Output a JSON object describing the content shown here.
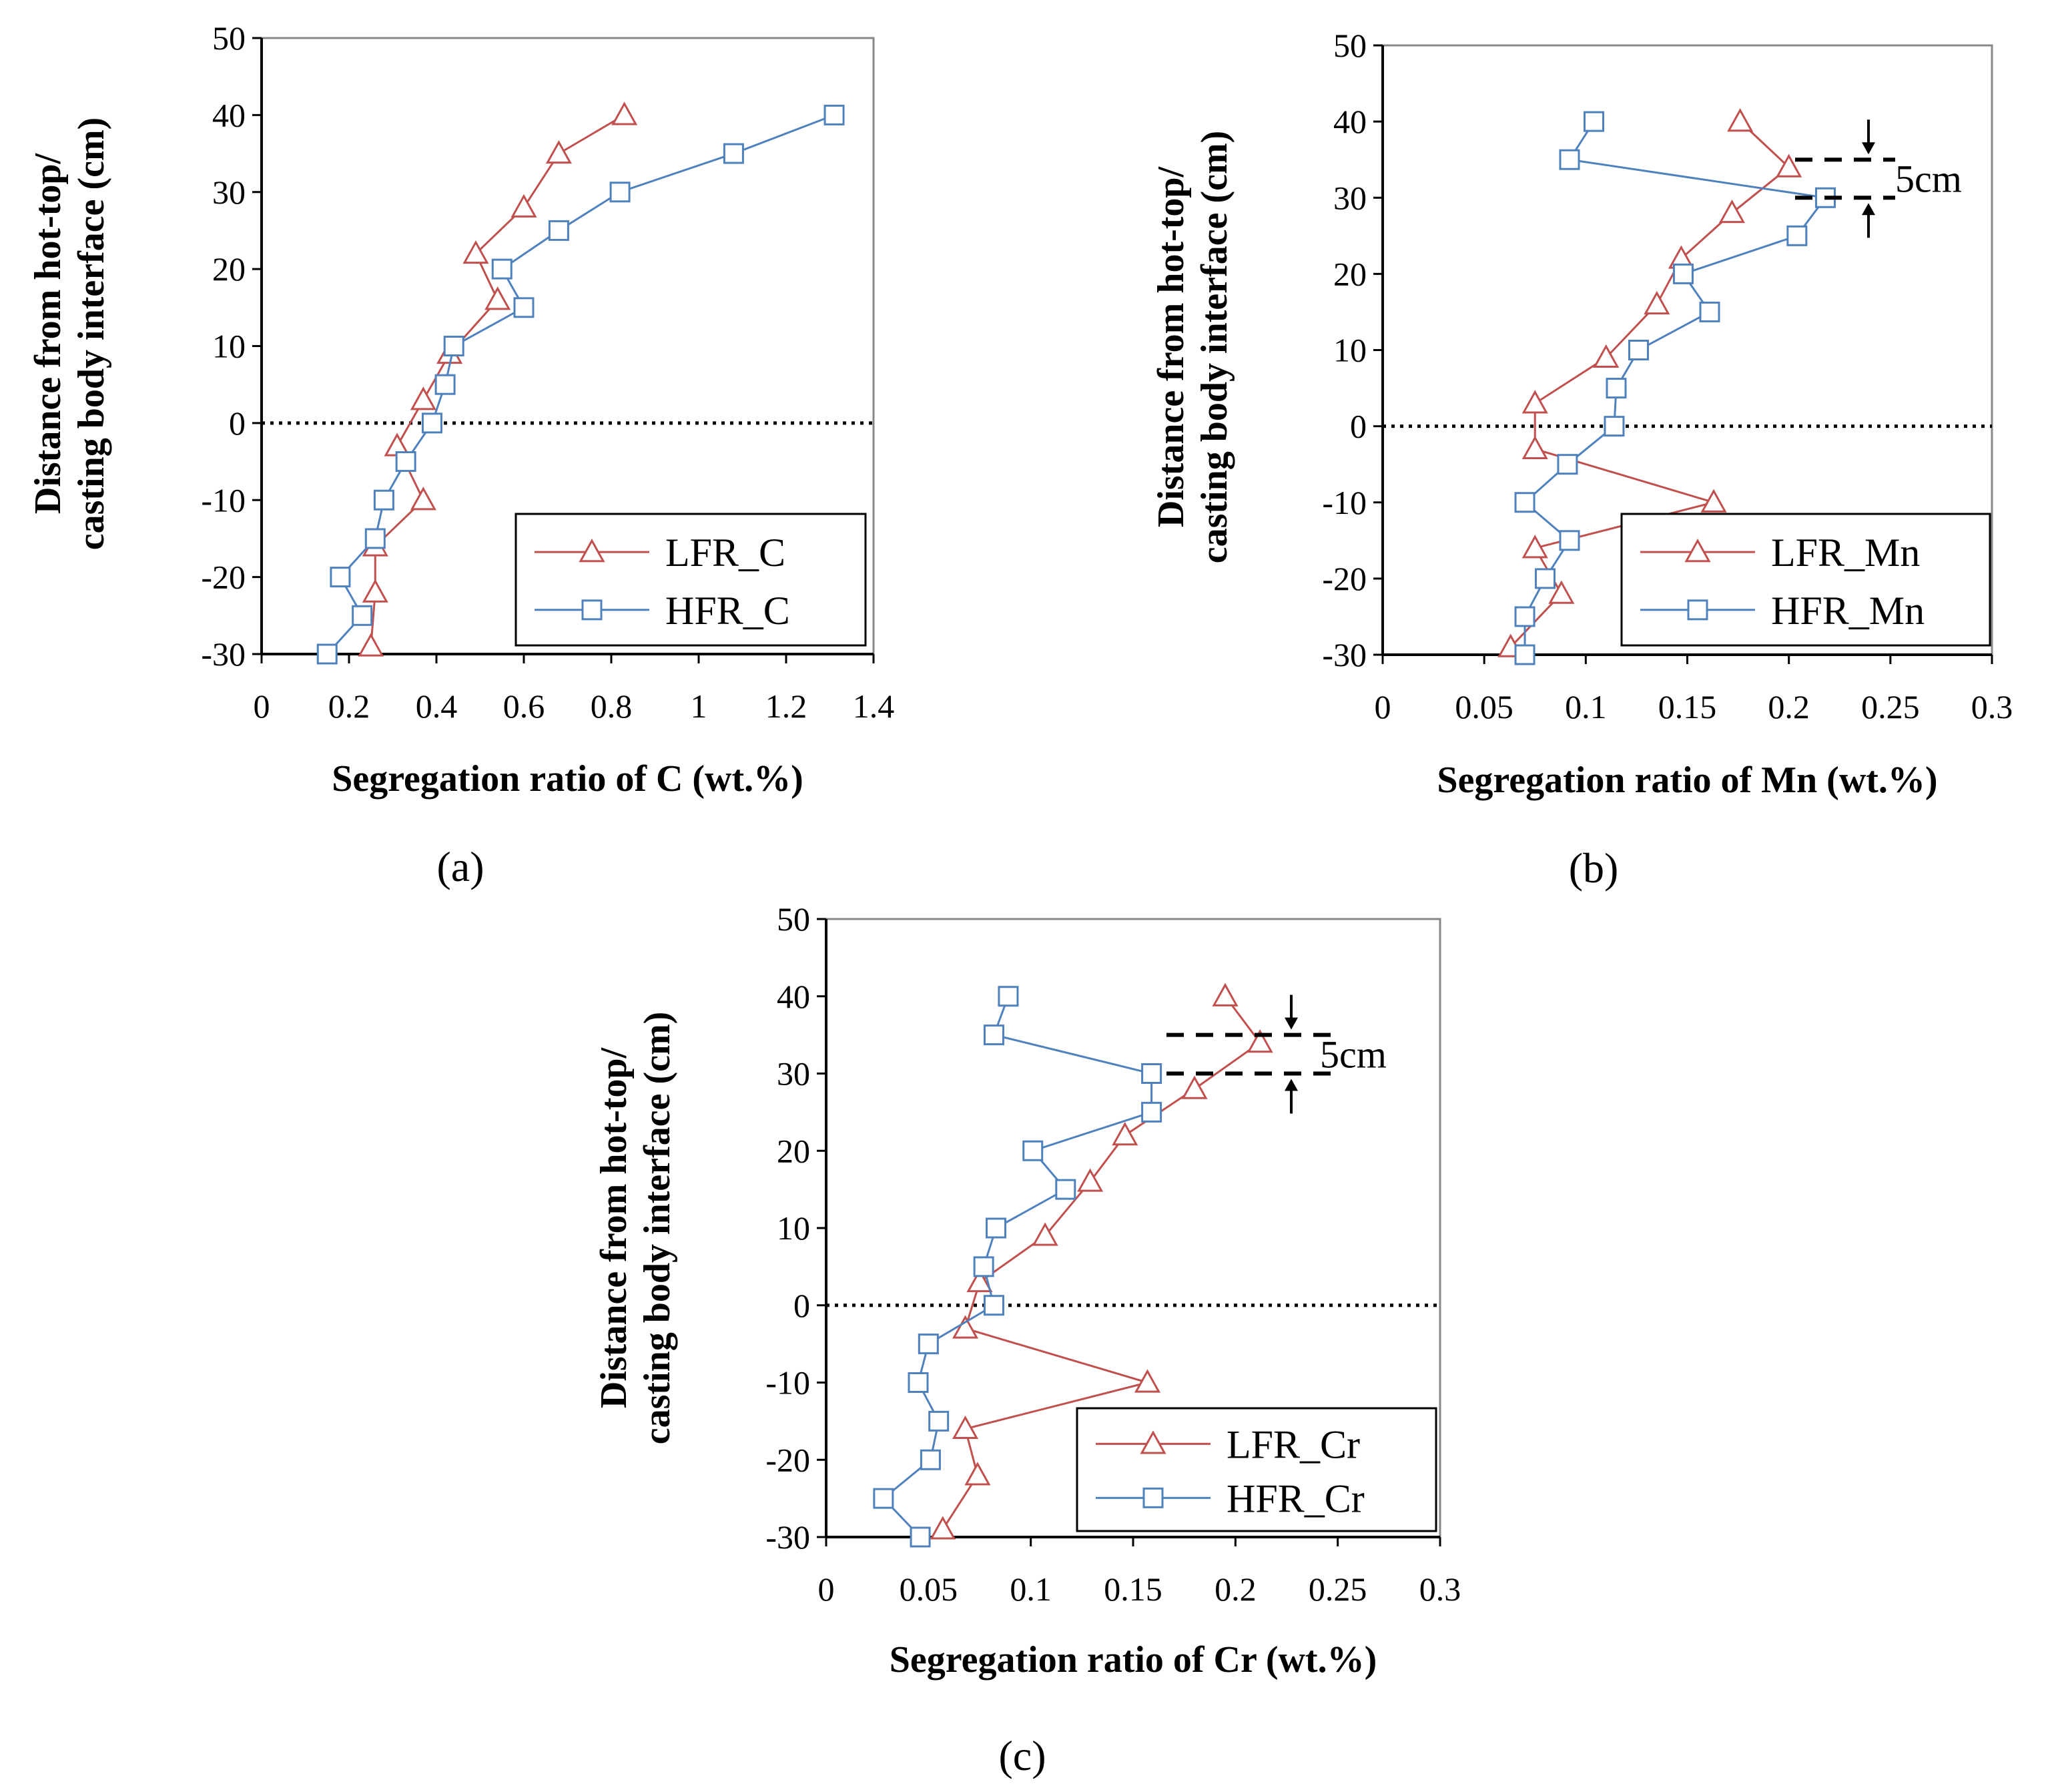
{
  "colors": {
    "lfr": "#c0504d",
    "hfr": "#4f81bd",
    "axis": "#000000",
    "gridless": true
  },
  "chart_data": [
    {
      "id": "a",
      "type": "line",
      "panel_label": "(a)",
      "xlabel": "Segregation ratio of C (wt.%)",
      "ylabel_line1": "Distance from hot-top/",
      "ylabel_line2": "casting body interface (cm)",
      "xlim": [
        0,
        1.4
      ],
      "ylim": [
        -30,
        50
      ],
      "xticks": [
        "0",
        "0.2",
        "0.4",
        "0.6",
        "0.8",
        "1",
        "1.2",
        "1.4"
      ],
      "yticks": [
        "50",
        "40",
        "30",
        "20",
        "10",
        "0",
        "-10",
        "-20",
        "-30"
      ],
      "legend_position": "bottom-right",
      "annotation": "",
      "series": [
        {
          "name": "LFR_C",
          "marker": "triangle",
          "x": [
            0.83,
            0.68,
            0.6,
            0.49,
            0.54,
            0.43,
            0.37,
            0.31,
            0.37,
            0.26,
            0.26,
            0.25
          ],
          "y": [
            40,
            35,
            28,
            22,
            16,
            9,
            3,
            -3,
            -10,
            -16,
            -22,
            -29
          ]
        },
        {
          "name": "HFR_C",
          "marker": "square",
          "x": [
            1.31,
            1.08,
            0.82,
            0.68,
            0.55,
            0.6,
            0.44,
            0.42,
            0.39,
            0.33,
            0.28,
            0.26,
            0.18,
            0.23,
            0.15
          ],
          "y": [
            40,
            35,
            30,
            25,
            20,
            15,
            10,
            5,
            0,
            -5,
            -10,
            -15,
            -20,
            -25,
            -30
          ]
        }
      ]
    },
    {
      "id": "b",
      "type": "line",
      "panel_label": "(b)",
      "xlabel": "Segregation ratio of Mn (wt.%)",
      "ylabel_line1": "Distance from hot-top/",
      "ylabel_line2": "casting body interface (cm)",
      "xlim": [
        0,
        0.3
      ],
      "ylim": [
        -30,
        50
      ],
      "xticks": [
        "0",
        "0.05",
        "0.1",
        "0.15",
        "0.2",
        "0.25",
        "0.3"
      ],
      "yticks": [
        "50",
        "40",
        "30",
        "20",
        "10",
        "0",
        "-10",
        "-20",
        "-30"
      ],
      "legend_position": "bottom-right",
      "annotation": "5cm",
      "series": [
        {
          "name": "LFR_Mn",
          "marker": "triangle",
          "x": [
            0.176,
            0.2,
            0.172,
            0.147,
            0.135,
            0.11,
            0.075,
            0.075,
            0.163,
            0.075,
            0.088,
            0.063
          ],
          "y": [
            40,
            34,
            28,
            22,
            16,
            9,
            3,
            -3,
            -10,
            -16,
            -22,
            -29
          ]
        },
        {
          "name": "HFR_Mn",
          "marker": "square",
          "x": [
            0.104,
            0.092,
            0.218,
            0.204,
            0.148,
            0.161,
            0.126,
            0.115,
            0.114,
            0.091,
            0.07,
            0.092,
            0.08,
            0.07,
            0.07
          ],
          "y": [
            40,
            35,
            30,
            25,
            20,
            15,
            10,
            5,
            0,
            -5,
            -10,
            -15,
            -20,
            -25,
            -30
          ]
        }
      ]
    },
    {
      "id": "c",
      "type": "line",
      "panel_label": "(c)",
      "xlabel": "Segregation ratio of Cr (wt.%)",
      "ylabel_line1": "Distance from hot-top/",
      "ylabel_line2": "casting body interface (cm)",
      "xlim": [
        0,
        0.3
      ],
      "ylim": [
        -30,
        50
      ],
      "xticks": [
        "0",
        "0.05",
        "0.1",
        "0.15",
        "0.2",
        "0.25",
        "0.3"
      ],
      "yticks": [
        "50",
        "40",
        "30",
        "20",
        "10",
        "0",
        "-10",
        "-20",
        "-30"
      ],
      "legend_position": "bottom-right",
      "annotation": "5cm",
      "series": [
        {
          "name": "LFR_Cr",
          "marker": "triangle",
          "x": [
            0.195,
            0.212,
            0.18,
            0.146,
            0.129,
            0.107,
            0.075,
            0.068,
            0.157,
            0.068,
            0.074,
            0.057
          ],
          "y": [
            40,
            34,
            28,
            22,
            16,
            9,
            3,
            -3,
            -10,
            -16,
            -22,
            -29
          ]
        },
        {
          "name": "HFR_Cr",
          "marker": "square",
          "x": [
            0.089,
            0.082,
            0.159,
            0.159,
            0.101,
            0.117,
            0.083,
            0.077,
            0.082,
            0.05,
            0.045,
            0.055,
            0.051,
            0.028,
            0.046
          ],
          "y": [
            40,
            35,
            30,
            25,
            20,
            15,
            10,
            5,
            0,
            -5,
            -10,
            -15,
            -20,
            -25,
            -30
          ]
        }
      ]
    }
  ]
}
